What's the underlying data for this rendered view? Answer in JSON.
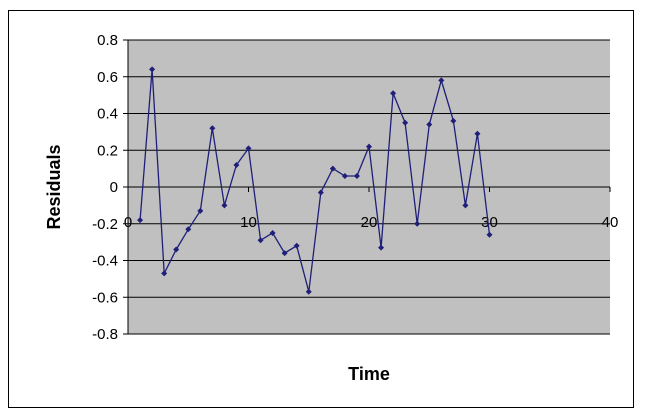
{
  "chart_data": {
    "type": "line",
    "title": "",
    "xlabel": "Time",
    "ylabel": "Residuals",
    "xlim": [
      0,
      40
    ],
    "ylim": [
      -0.8,
      0.8
    ],
    "x_ticks": [
      "0",
      "10",
      "20",
      "30",
      "40"
    ],
    "y_ticks": [
      "0.8",
      "0.6",
      "0.4",
      "0.2",
      "0",
      "-0.2",
      "-0.4",
      "-0.6",
      "-0.8"
    ],
    "grid": true,
    "legend": "none",
    "colors": {
      "plot_area": "#c0c0c0",
      "series": "#1f1f7a",
      "gridline": "#000000"
    },
    "series": [
      {
        "x": [
          1,
          2,
          3,
          4,
          5,
          6,
          7,
          8,
          9,
          10,
          11,
          12,
          13,
          14,
          15,
          16,
          17,
          18,
          19,
          20,
          21,
          22,
          23,
          24,
          25,
          26,
          27,
          28,
          29,
          30
        ],
        "values": [
          -0.18,
          0.64,
          -0.47,
          -0.34,
          -0.23,
          -0.13,
          0.32,
          -0.1,
          0.12,
          0.21,
          -0.29,
          -0.25,
          -0.36,
          -0.32,
          -0.57,
          -0.03,
          0.1,
          0.06,
          0.06,
          0.22,
          -0.33,
          0.51,
          0.35,
          -0.2,
          0.34,
          0.58,
          0.36,
          -0.1,
          0.29,
          -0.26
        ]
      }
    ]
  }
}
